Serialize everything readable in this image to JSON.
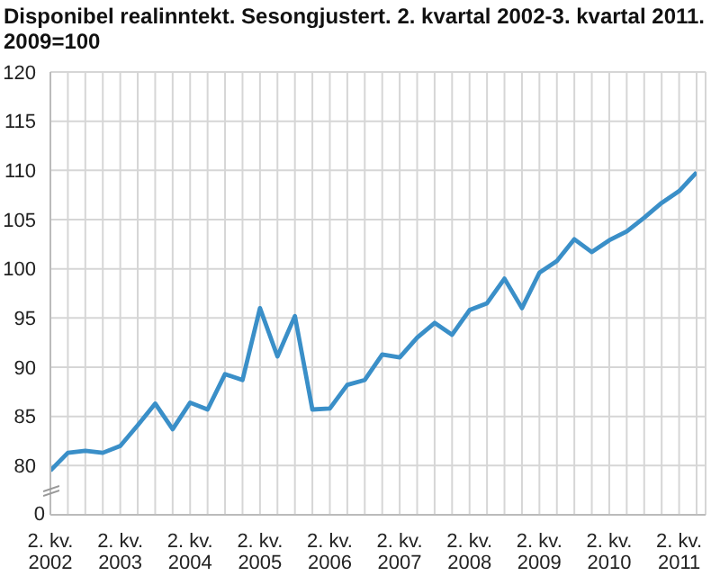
{
  "chart_data": {
    "type": "line",
    "title": "Disponibel realinntekt. Sesongjustert. 2. kvartal 2002-3. kvartal 2011. 2009=100",
    "categories": [
      "2. kv.\n2002",
      null,
      null,
      null,
      "2. kv.\n2003",
      null,
      null,
      null,
      "2. kv.\n2004",
      null,
      null,
      null,
      "2. kv.\n2005",
      null,
      null,
      null,
      "2. kv.\n2006",
      null,
      null,
      null,
      "2. kv.\n2007",
      null,
      null,
      null,
      "2. kv.\n2008",
      null,
      null,
      null,
      "2. kv.\n2009",
      null,
      null,
      null,
      "2. kv.\n2010",
      null,
      null,
      null,
      "2. kv.\n2011",
      null
    ],
    "values": [
      79.5,
      81.3,
      81.5,
      81.3,
      82.0,
      84.1,
      86.3,
      83.7,
      86.4,
      85.7,
      89.3,
      88.7,
      96.0,
      91.1,
      95.2,
      85.7,
      85.8,
      88.2,
      88.7,
      91.3,
      91.0,
      93.0,
      94.5,
      93.3,
      95.8,
      96.5,
      99.0,
      96.0,
      99.6,
      100.8,
      103.0,
      101.7,
      102.9,
      103.8,
      105.2,
      106.7,
      107.9,
      109.8
    ],
    "color": "#3a8fc8",
    "ylim": [
      75,
      120
    ],
    "yticks": [
      80,
      85,
      90,
      95,
      100,
      105,
      110,
      115,
      120
    ],
    "annotations": [
      "0"
    ],
    "grid": true
  }
}
